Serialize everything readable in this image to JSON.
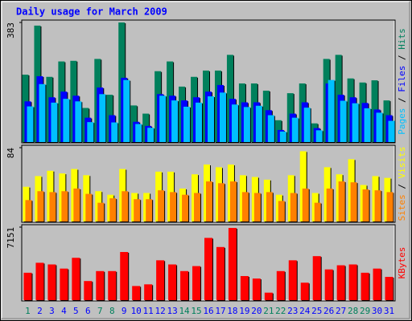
{
  "title": "Daily usage for March 2009",
  "legend_separator": " / ",
  "chart_data": [
    {
      "type": "bar",
      "ylim": [
        0,
        383
      ],
      "yticks": [
        383
      ],
      "series": [
        {
          "name": "Hits",
          "color": "#00805c",
          "values": [
            217,
            373,
            210,
            259,
            261,
            111,
            267,
            153,
            383,
            119,
            93,
            228,
            259,
            179,
            210,
            230,
            230,
            280,
            189,
            189,
            166,
            72,
            158,
            189,
            62,
            267,
            280,
            205,
            192,
            199,
            135
          ]
        },
        {
          "name": "Files",
          "color": "#0000ff",
          "values": [
            132,
            212,
            145,
            163,
            150,
            80,
            176,
            88,
            207,
            67,
            54,
            155,
            150,
            135,
            145,
            163,
            184,
            140,
            129,
            129,
            104,
            41,
            93,
            129,
            47,
            189,
            153,
            145,
            127,
            106,
            88
          ]
        },
        {
          "name": "Pages",
          "color": "#00c0ff",
          "values": [
            116,
            187,
            128,
            140,
            132,
            66,
            155,
            65,
            200,
            60,
            48,
            150,
            135,
            115,
            128,
            148,
            160,
            122,
            114,
            118,
            88,
            36,
            80,
            112,
            40,
            200,
            134,
            126,
            110,
            96,
            70
          ]
        }
      ]
    },
    {
      "type": "bar",
      "ylim": [
        0,
        84
      ],
      "yticks": [
        84
      ],
      "series": [
        {
          "name": "Visits",
          "color": "#ffff00",
          "values": [
            40,
            52,
            58,
            55,
            60,
            53,
            35,
            31,
            60,
            33,
            33,
            57,
            57,
            38,
            54,
            65,
            62,
            65,
            53,
            51,
            48,
            31,
            53,
            80,
            33,
            62,
            54,
            71,
            42,
            52,
            50
          ]
        },
        {
          "name": "Sites",
          "color": "#ff8000",
          "values": [
            25,
            35,
            34,
            35,
            38,
            32,
            22,
            27,
            35,
            26,
            26,
            36,
            34,
            31,
            33,
            46,
            44,
            46,
            34,
            33,
            34,
            24,
            33,
            38,
            22,
            38,
            46,
            45,
            37,
            36,
            34
          ]
        }
      ]
    },
    {
      "type": "bar",
      "ylim": [
        0,
        7151
      ],
      "yticks": [
        7151
      ],
      "categories": [
        "1",
        "2",
        "3",
        "4",
        "5",
        "6",
        "7",
        "8",
        "9",
        "10",
        "11",
        "12",
        "13",
        "14",
        "15",
        "16",
        "17",
        "18",
        "19",
        "20",
        "21",
        "22",
        "23",
        "24",
        "25",
        "26",
        "27",
        "28",
        "29",
        "30",
        "31"
      ],
      "category_colors": [
        "#00805c",
        "#0000ff",
        "#0000ff",
        "#0000ff",
        "#0000ff",
        "#0000ff",
        "#00805c",
        "#00805c",
        "#0000ff",
        "#0000ff",
        "#0000ff",
        "#0000ff",
        "#0000ff",
        "#00805c",
        "#00805c",
        "#0000ff",
        "#0000ff",
        "#0000ff",
        "#0000ff",
        "#0000ff",
        "#00805c",
        "#00805c",
        "#0000ff",
        "#0000ff",
        "#0000ff",
        "#0000ff",
        "#0000ff",
        "#00805c",
        "#00805c",
        "#0000ff",
        "#0000ff"
      ],
      "series": [
        {
          "name": "KBytes",
          "color": "#ff0000",
          "values": [
            2732,
            3697,
            3535,
            3134,
            4178,
            1928,
            2893,
            2893,
            4740,
            1446,
            1607,
            3937,
            3535,
            2893,
            3375,
            6107,
            5223,
            7071,
            2410,
            2169,
            803,
            2893,
            3937,
            1768,
            4339,
            3054,
            3455,
            3535,
            2732,
            3134,
            2330
          ]
        }
      ]
    }
  ]
}
